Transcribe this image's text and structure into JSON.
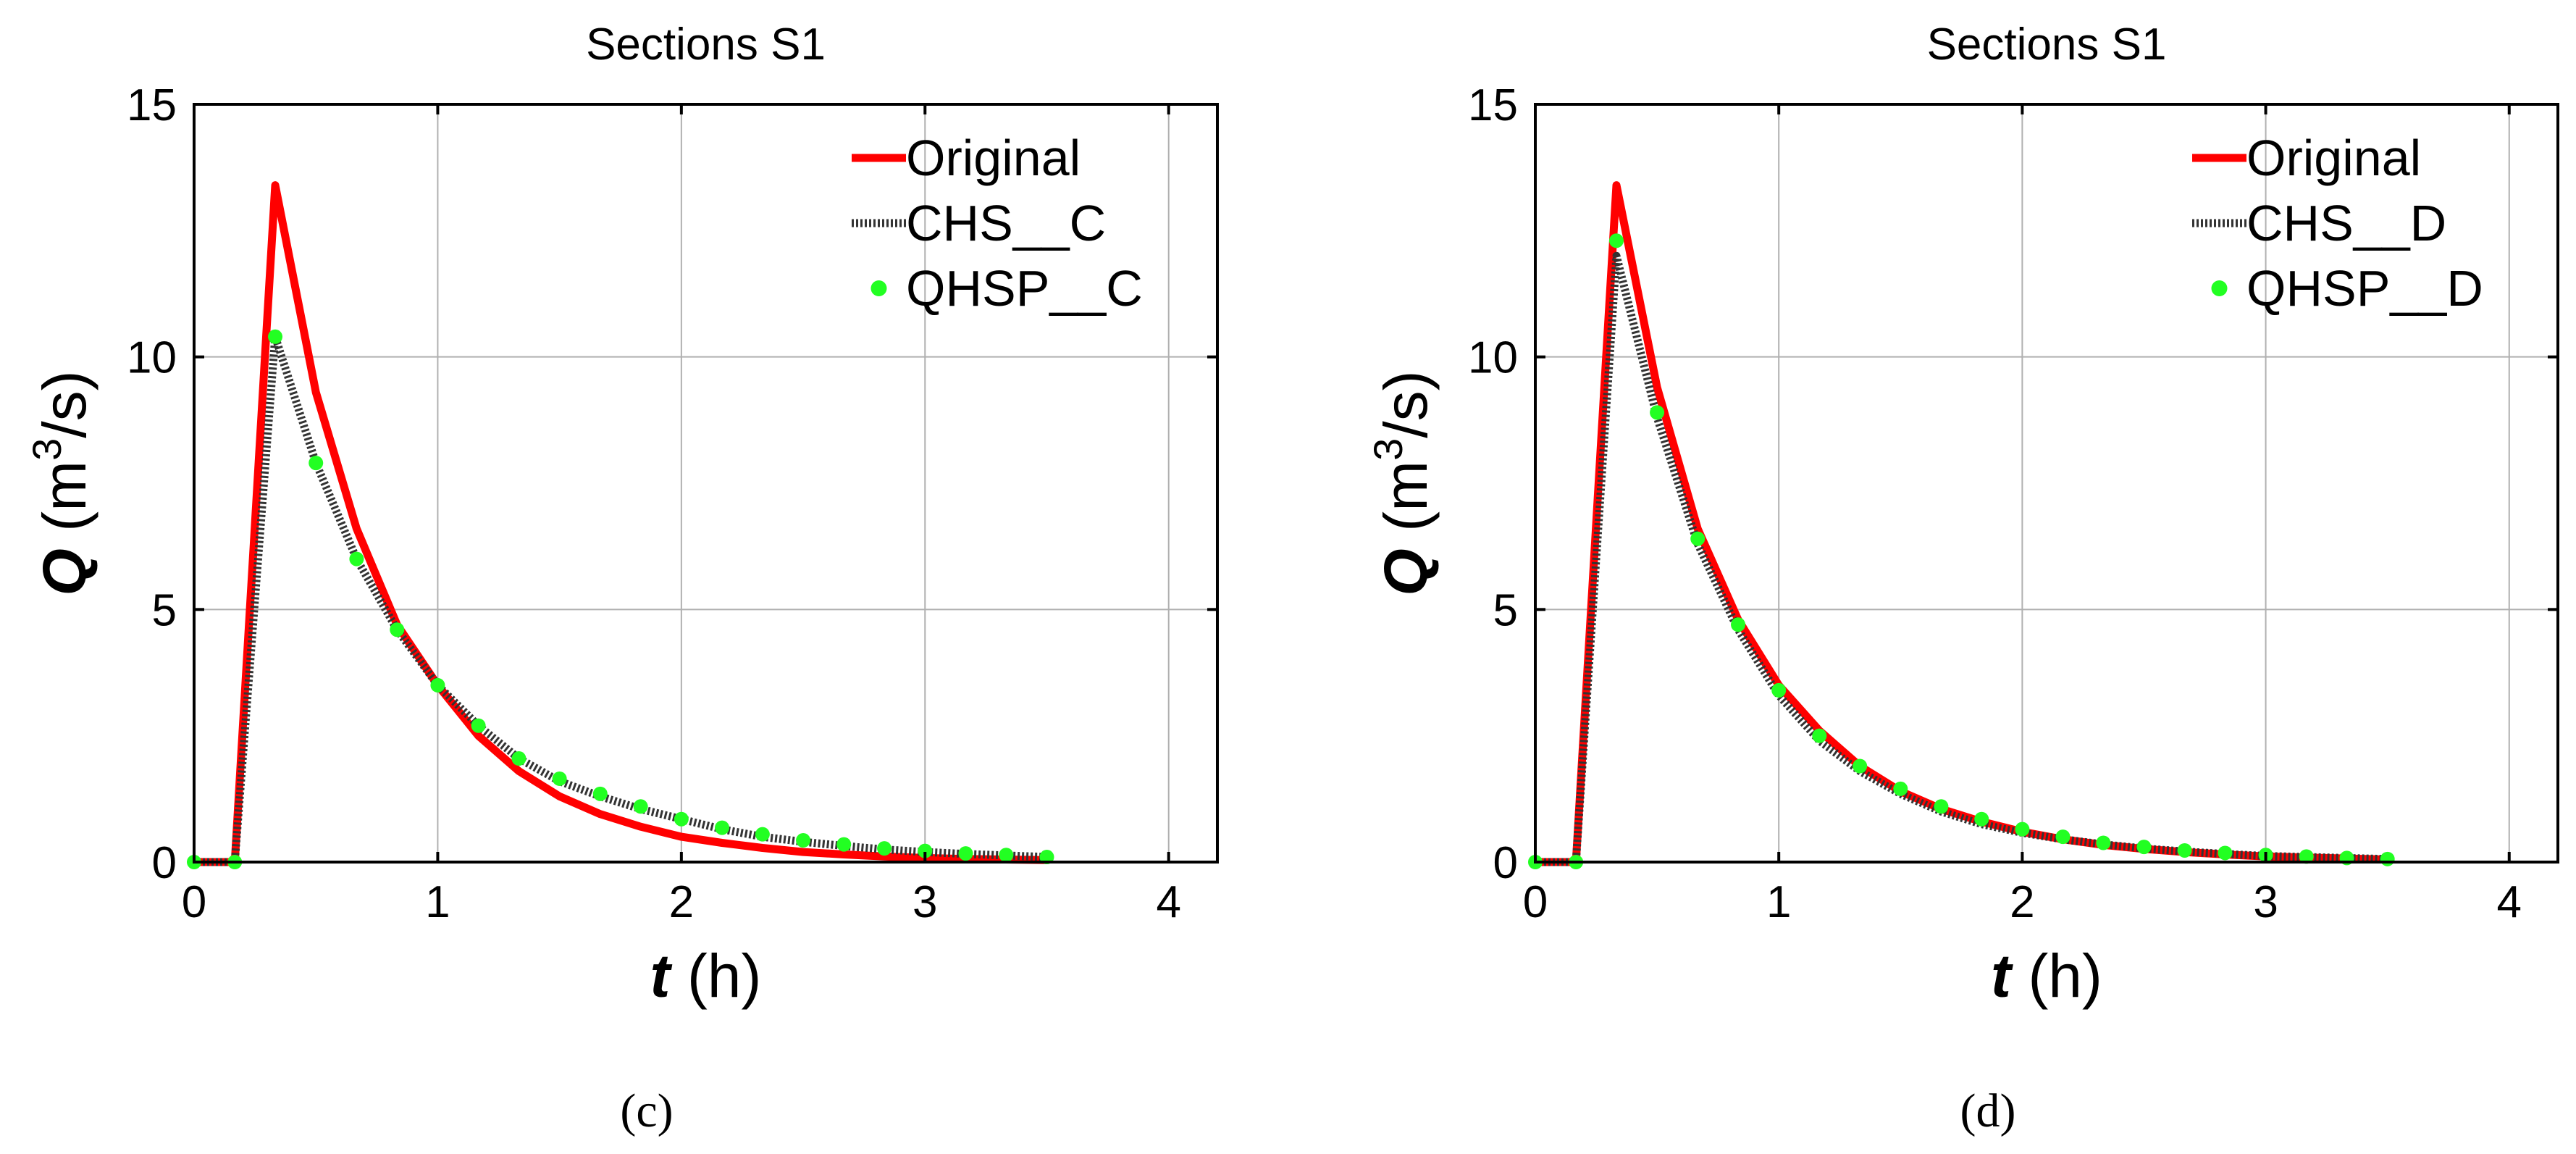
{
  "chart_data": [
    {
      "type": "line",
      "panel_label": "(c)",
      "title": "Sections S1",
      "xlabel_symbol": "t",
      "xlabel_unit": "(h)",
      "ylabel_symbol": "Q",
      "ylabel_unit_pre": "(m",
      "ylabel_unit_sup": "3",
      "ylabel_unit_post": "/s)",
      "xlim": [
        0,
        4.2
      ],
      "ylim": [
        0,
        15
      ],
      "xticks": [
        0,
        1,
        2,
        3,
        4
      ],
      "yticks": [
        0,
        5,
        10,
        15
      ],
      "grid": true,
      "legend_position": "top-right",
      "series": [
        {
          "name": "Original",
          "style": "solid",
          "color": "#ff0000",
          "x": [
            0,
            0.167,
            0.333,
            0.5,
            0.667,
            0.833,
            1.0,
            1.167,
            1.333,
            1.5,
            1.667,
            1.833,
            2.0,
            2.167,
            2.333,
            2.5,
            2.667,
            2.833,
            3.0,
            3.167,
            3.333,
            3.5
          ],
          "y": [
            0,
            0,
            13.4,
            9.3,
            6.6,
            4.7,
            3.5,
            2.5,
            1.8,
            1.3,
            0.95,
            0.7,
            0.5,
            0.38,
            0.28,
            0.2,
            0.15,
            0.11,
            0.08,
            0.06,
            0.05,
            0.04
          ]
        },
        {
          "name": "CHS__C",
          "style": "dotted",
          "color": "#333333",
          "x": [
            0,
            0.167,
            0.333,
            0.5,
            0.667,
            0.833,
            1.0,
            1.167,
            1.333,
            1.5,
            1.667,
            1.833,
            2.0,
            2.167,
            2.333,
            2.5,
            2.667,
            2.833,
            3.0,
            3.167,
            3.333,
            3.5
          ],
          "y": [
            0,
            0,
            10.4,
            7.9,
            6.0,
            4.6,
            3.5,
            2.7,
            2.05,
            1.6,
            1.3,
            1.05,
            0.85,
            0.65,
            0.5,
            0.4,
            0.32,
            0.25,
            0.2,
            0.16,
            0.13,
            0.1
          ]
        },
        {
          "name": "QHSP__C",
          "style": "markers",
          "color": "#22ff22",
          "x": [
            0,
            0.167,
            0.333,
            0.5,
            0.667,
            0.833,
            1.0,
            1.167,
            1.333,
            1.5,
            1.667,
            1.833,
            2.0,
            2.167,
            2.333,
            2.5,
            2.667,
            2.833,
            3.0,
            3.167,
            3.333,
            3.5
          ],
          "y": [
            0,
            0,
            10.4,
            7.9,
            6.0,
            4.6,
            3.5,
            2.7,
            2.05,
            1.65,
            1.35,
            1.1,
            0.85,
            0.68,
            0.55,
            0.43,
            0.35,
            0.27,
            0.22,
            0.17,
            0.14,
            0.1
          ]
        }
      ]
    },
    {
      "type": "line",
      "panel_label": "(d)",
      "title": "Sections S1",
      "xlabel_symbol": "t",
      "xlabel_unit": "(h)",
      "ylabel_symbol": "Q",
      "ylabel_unit_pre": "(m",
      "ylabel_unit_sup": "3",
      "ylabel_unit_post": "/s)",
      "xlim": [
        0,
        4.2
      ],
      "ylim": [
        0,
        15
      ],
      "xticks": [
        0,
        1,
        2,
        3,
        4
      ],
      "yticks": [
        0,
        5,
        10,
        15
      ],
      "grid": true,
      "legend_position": "top-right",
      "series": [
        {
          "name": "Original",
          "style": "solid",
          "color": "#ff0000",
          "x": [
            0,
            0.167,
            0.333,
            0.5,
            0.667,
            0.833,
            1.0,
            1.167,
            1.333,
            1.5,
            1.667,
            1.833,
            2.0,
            2.167,
            2.333,
            2.5,
            2.667,
            2.833,
            3.0,
            3.167,
            3.333,
            3.5
          ],
          "y": [
            0,
            0,
            13.4,
            9.4,
            6.6,
            4.8,
            3.5,
            2.6,
            1.9,
            1.4,
            1.05,
            0.8,
            0.6,
            0.45,
            0.34,
            0.26,
            0.2,
            0.15,
            0.11,
            0.09,
            0.07,
            0.05
          ]
        },
        {
          "name": "CHS__D",
          "style": "dotted",
          "color": "#333333",
          "x": [
            0,
            0.167,
            0.333,
            0.5,
            0.667,
            0.833,
            1.0,
            1.167,
            1.333,
            1.5,
            1.667,
            1.833,
            2.0,
            2.167,
            2.333,
            2.5,
            2.667,
            2.833,
            3.0,
            3.167,
            3.333,
            3.5
          ],
          "y": [
            0,
            0,
            12.0,
            8.8,
            6.3,
            4.6,
            3.3,
            2.4,
            1.8,
            1.35,
            1.0,
            0.75,
            0.58,
            0.45,
            0.35,
            0.27,
            0.21,
            0.16,
            0.12,
            0.1,
            0.08,
            0.06
          ]
        },
        {
          "name": "QHSP__D",
          "style": "markers",
          "color": "#22ff22",
          "x": [
            0,
            0.167,
            0.333,
            0.5,
            0.667,
            0.833,
            1.0,
            1.167,
            1.333,
            1.5,
            1.667,
            1.833,
            2.0,
            2.167,
            2.333,
            2.5,
            2.667,
            2.833,
            3.0,
            3.167,
            3.333,
            3.5
          ],
          "y": [
            0,
            0,
            12.3,
            8.9,
            6.4,
            4.7,
            3.4,
            2.5,
            1.9,
            1.45,
            1.1,
            0.85,
            0.65,
            0.5,
            0.38,
            0.3,
            0.23,
            0.18,
            0.14,
            0.11,
            0.08,
            0.06
          ]
        }
      ]
    }
  ]
}
